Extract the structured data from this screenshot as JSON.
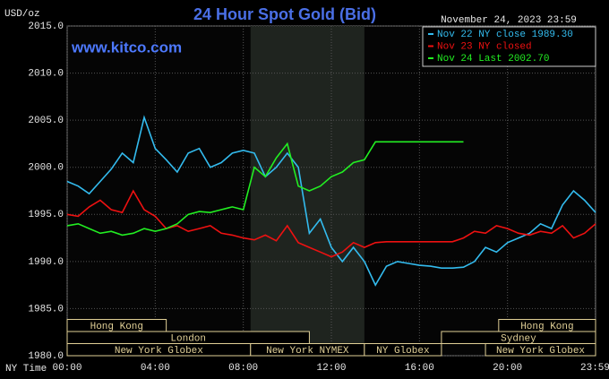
{
  "chart_data": {
    "type": "line",
    "title": "24 Hour Spot Gold (Bid)",
    "subtitle": "November 24, 2023 23:59",
    "y_axis_label": "USD/oz",
    "x_axis_label": "NY Time",
    "watermark": "www.kitco.com",
    "x": [
      0,
      0.5,
      1,
      1.5,
      2,
      2.5,
      3,
      3.5,
      4,
      4.5,
      5,
      5.5,
      6,
      6.5,
      7,
      7.5,
      8,
      8.5,
      9,
      9.5,
      10,
      10.5,
      11,
      11.5,
      12,
      12.5,
      13,
      13.5,
      14,
      14.5,
      15,
      15.5,
      16,
      16.5,
      17,
      17.5,
      18,
      18.5,
      19,
      19.5,
      20,
      20.5,
      21,
      21.5,
      22,
      22.5,
      23,
      23.5,
      24
    ],
    "series": [
      {
        "name": "Nov 22 NY close 1989.30",
        "color": "#33bbee",
        "values": [
          1998.5,
          1998,
          1997.2,
          1998.5,
          1999.8,
          2001.5,
          2000.5,
          2005.3,
          2002,
          2000.8,
          1999.5,
          2001.5,
          2002,
          2000,
          2000.5,
          2001.5,
          2001.8,
          2001.5,
          1999,
          2000,
          2001.5,
          2000,
          1993,
          1994.5,
          1991.5,
          1990,
          1991.5,
          1990,
          1987.5,
          1989.5,
          1990,
          1989.8,
          1989.6,
          1989.5,
          1989.3,
          1989.3,
          1989.4,
          1990,
          1991.5,
          1991,
          1992,
          1992.5,
          1993,
          1994,
          1993.5,
          1996,
          1997.5,
          1996.5,
          1995.2
        ]
      },
      {
        "name": "Nov 23 NY closed",
        "color": "#ee1111",
        "values": [
          1995,
          1994.8,
          1995.8,
          1996.5,
          1995.5,
          1995.2,
          1997.5,
          1995.5,
          1994.8,
          1993.5,
          1993.8,
          1993.2,
          1993.5,
          1993.8,
          1993,
          1992.8,
          1992.5,
          1992.3,
          1992.8,
          1992.2,
          1993.8,
          1992,
          1991.5,
          1991,
          1990.5,
          1991,
          1992,
          1991.5,
          1992,
          1992.1,
          1992.1,
          1992.1,
          1992.1,
          1992.1,
          1992.1,
          1992.1,
          1992.5,
          1993.2,
          1993,
          1993.8,
          1993.5,
          1993,
          1992.8,
          1993.2,
          1993,
          1993.8,
          1992.5,
          1993,
          1994
        ]
      },
      {
        "name": "Nov 24 Last 2002.70",
        "color": "#22ee22",
        "values": [
          1993.8,
          1994,
          1993.5,
          1993,
          1993.2,
          1992.8,
          1993,
          1993.5,
          1993.2,
          1993.5,
          1994,
          1995,
          1995.3,
          1995.2,
          1995.5,
          1995.8,
          1995.5,
          2000,
          1999,
          2001,
          2002.5,
          1998,
          1997.5,
          1998,
          1999,
          1999.5,
          2000.5,
          2000.8,
          2002.7,
          2002.7,
          2002.7,
          2002.7,
          2002.7,
          2002.7,
          2002.7,
          2002.7,
          2002.7,
          null,
          null,
          null,
          null,
          null,
          null,
          null,
          null,
          null,
          null,
          null,
          null
        ]
      }
    ],
    "xlim": [
      0,
      24
    ],
    "ylim": [
      1980,
      2015
    ],
    "yticks": [
      {
        "value": 1980,
        "label": "1980.0"
      },
      {
        "value": 1985,
        "label": "1985.0"
      },
      {
        "value": 1990,
        "label": "1990.0"
      },
      {
        "value": 1995,
        "label": "1995.0"
      },
      {
        "value": 2000,
        "label": "2000.0"
      },
      {
        "value": 2005,
        "label": "2005.0"
      },
      {
        "value": 2010,
        "label": "2010.0"
      },
      {
        "value": 2015,
        "label": "2015.0"
      }
    ],
    "xticks": [
      {
        "value": 0,
        "label": "00:00"
      },
      {
        "value": 4,
        "label": "04:00"
      },
      {
        "value": 8,
        "label": "08:00"
      },
      {
        "value": 12,
        "label": "12:00"
      },
      {
        "value": 16,
        "label": "16:00"
      },
      {
        "value": 20,
        "label": "20:00"
      },
      {
        "value": 23.98,
        "label": "23:59"
      }
    ],
    "grid": true,
    "highlight": [
      8.33,
      13.5
    ],
    "session_rows": [
      [
        {
          "name": "Hong Kong",
          "start": 0,
          "end": 4.5
        },
        {
          "name": "Hong Kong",
          "start": 19.6,
          "end": 24
        }
      ],
      [
        {
          "name": "London",
          "start": 0,
          "end": 11
        },
        {
          "name": "Sydney",
          "start": 17,
          "end": 24
        }
      ],
      [
        {
          "name": "New York Globex",
          "start": 0,
          "end": 8.33
        },
        {
          "name": "New York NYMEX",
          "start": 8.33,
          "end": 13.5
        },
        {
          "name": "NY Globex",
          "start": 13.5,
          "end": 17
        },
        {
          "name": "New York Globex",
          "start": 19,
          "end": 24
        }
      ]
    ]
  }
}
